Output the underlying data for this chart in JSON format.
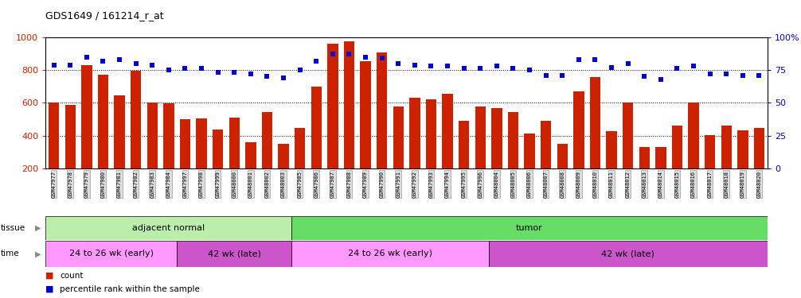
{
  "title": "GDS1649 / 161214_r_at",
  "samples": [
    "GSM47977",
    "GSM47978",
    "GSM47979",
    "GSM47980",
    "GSM47981",
    "GSM47982",
    "GSM47983",
    "GSM47984",
    "GSM47997",
    "GSM47998",
    "GSM47999",
    "GSM48000",
    "GSM48001",
    "GSM48002",
    "GSM48003",
    "GSM47985",
    "GSM47986",
    "GSM47987",
    "GSM47988",
    "GSM47989",
    "GSM47990",
    "GSM47991",
    "GSM47992",
    "GSM47993",
    "GSM47994",
    "GSM47995",
    "GSM47996",
    "GSM48004",
    "GSM48005",
    "GSM48006",
    "GSM48007",
    "GSM48008",
    "GSM48009",
    "GSM48010",
    "GSM48011",
    "GSM48012",
    "GSM48013",
    "GSM48014",
    "GSM48015",
    "GSM48016",
    "GSM48017",
    "GSM48018",
    "GSM48019",
    "GSM48020"
  ],
  "counts": [
    600,
    585,
    830,
    770,
    645,
    795,
    600,
    595,
    500,
    505,
    435,
    510,
    360,
    545,
    350,
    445,
    700,
    960,
    975,
    855,
    905,
    580,
    630,
    620,
    655,
    490,
    580,
    570,
    545,
    415,
    490,
    350,
    670,
    755,
    425,
    600,
    330,
    330,
    460,
    600,
    405,
    460,
    430,
    445
  ],
  "percentiles": [
    79,
    79,
    85,
    82,
    83,
    80,
    79,
    75,
    76,
    76,
    73,
    73,
    72,
    70,
    69,
    75,
    82,
    87,
    87,
    85,
    84,
    80,
    79,
    78,
    78,
    76,
    76,
    78,
    76,
    75,
    71,
    71,
    83,
    83,
    77,
    80,
    70,
    68,
    76,
    78,
    72,
    72,
    71,
    71
  ],
  "bar_color": "#CC2200",
  "dot_color": "#0000CC",
  "left_ylim": [
    200,
    1000
  ],
  "right_ylim": [
    0,
    100
  ],
  "left_yticks": [
    200,
    400,
    600,
    800,
    1000
  ],
  "right_yticks": [
    0,
    25,
    50,
    75,
    100
  ],
  "right_yticklabels": [
    "0",
    "25",
    "50",
    "75",
    "100%"
  ],
  "grid_values_left": [
    200,
    400,
    600,
    800,
    1000
  ],
  "tissue_groups": [
    {
      "label": "adjacent normal",
      "start": 0,
      "end": 14,
      "color": "#BBEEAA"
    },
    {
      "label": "tumor",
      "start": 15,
      "end": 43,
      "color": "#66DD66"
    }
  ],
  "time_groups": [
    {
      "label": "24 to 26 wk (early)",
      "start": 0,
      "end": 7,
      "color": "#FF99FF"
    },
    {
      "label": "42 wk (late)",
      "start": 8,
      "end": 14,
      "color": "#CC55CC"
    },
    {
      "label": "24 to 26 wk (early)",
      "start": 15,
      "end": 26,
      "color": "#FF99FF"
    },
    {
      "label": "42 wk (late)",
      "start": 27,
      "end": 43,
      "color": "#CC55CC"
    }
  ],
  "background_color": "#ffffff",
  "tick_label_bg": "#DDDDDD",
  "legend_count_color": "#CC2200",
  "legend_pct_color": "#0000CC",
  "legend_count_label": "count",
  "legend_pct_label": "percentile rank within the sample"
}
